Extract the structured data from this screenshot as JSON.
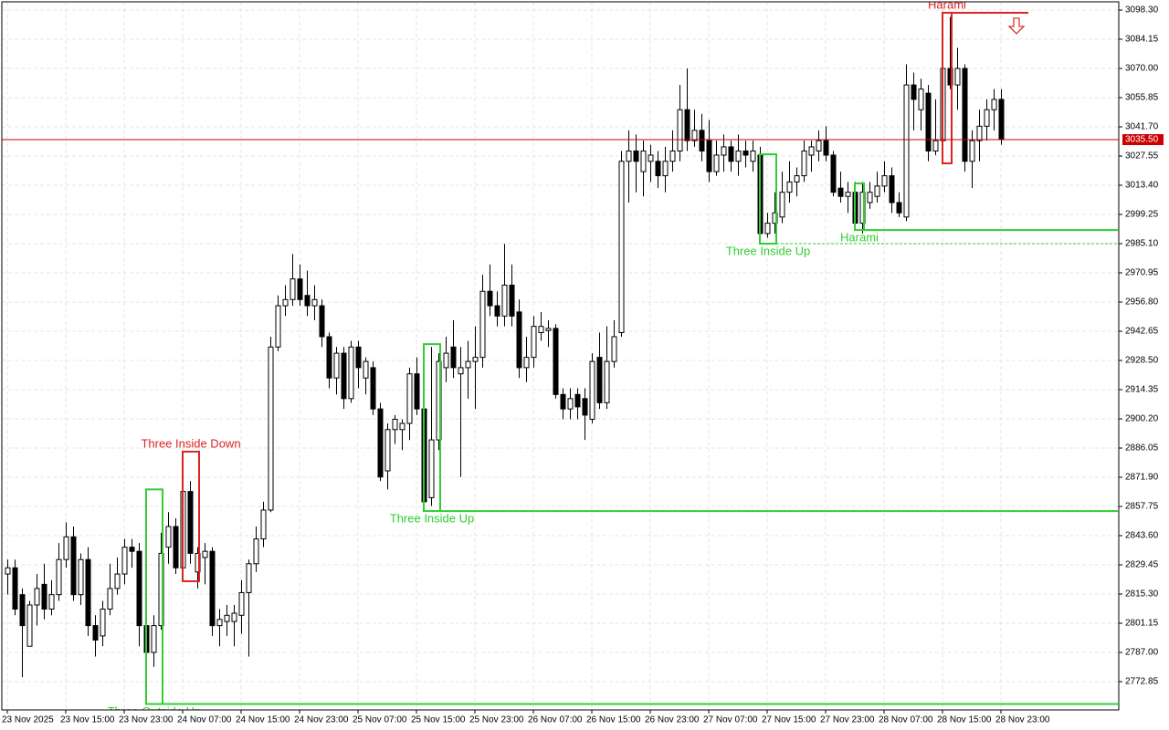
{
  "chart_data": {
    "type": "candlestick",
    "open": [
      2825,
      2828,
      2815,
      2790,
      2810,
      2820,
      2808,
      2815,
      2832,
      2843,
      2815,
      2832,
      2800,
      2795,
      2808,
      2818,
      2825,
      2838,
      2836,
      2800,
      2787,
      2800,
      2838,
      2848,
      2828,
      2865,
      2826,
      2833,
      2836,
      2800,
      2802,
      2802,
      2805,
      2816,
      2830,
      2842,
      2856,
      2935,
      2955,
      2958,
      2968,
      2960,
      2955,
      2955,
      2940,
      2920,
      2932,
      2910,
      2935,
      2920,
      2925,
      2905,
      2875,
      2895,
      2895,
      2898,
      2922,
      2905,
      2862,
      2890,
      2925,
      2935,
      2922,
      2925,
      2928,
      2930,
      2962,
      2955,
      2950,
      2965,
      2952,
      2925,
      2930,
      2942,
      2943,
      2944,
      2912,
      2905,
      2912,
      2910,
      2900,
      2930,
      2908,
      2928,
      2942,
      3025,
      3030,
      3020,
      3025,
      3025,
      3018,
      3025,
      3030,
      3050,
      3035,
      3040,
      3035,
      3020,
      3028,
      3032,
      3025,
      3030,
      3025,
      3028,
      2990,
      2995,
      2998,
      3010,
      3015,
      3018,
      3028,
      3030,
      3035,
      3028,
      3012,
      3008,
      3010,
      2995,
      3005,
      3008,
      3013,
      3018,
      3005,
      2998,
      3062,
      3050,
      3058,
      3030,
      3035,
      3070,
      3062,
      3070,
      3025,
      3035,
      3042,
      3050,
      3055
    ],
    "high": [
      2832,
      2832,
      2818,
      2812,
      2825,
      2830,
      2822,
      2840,
      2850,
      2848,
      2835,
      2838,
      2805,
      2812,
      2830,
      2833,
      2842,
      2842,
      2840,
      2805,
      2805,
      2845,
      2855,
      2852,
      2870,
      2870,
      2838,
      2840,
      2838,
      2808,
      2810,
      2810,
      2822,
      2832,
      2848,
      2860,
      2940,
      2960,
      2965,
      2980,
      2975,
      2972,
      2965,
      2958,
      2942,
      2935,
      2935,
      2938,
      2938,
      2930,
      2928,
      2908,
      2898,
      2902,
      2900,
      2925,
      2930,
      2908,
      2935,
      2932,
      2940,
      2948,
      2935,
      2938,
      2945,
      2970,
      2975,
      2962,
      2985,
      2975,
      2958,
      2940,
      2950,
      2952,
      2948,
      2946,
      2915,
      2915,
      2915,
      2915,
      2932,
      2942,
      2945,
      2948,
      3030,
      3040,
      3038,
      3035,
      3033,
      3030,
      3032,
      3040,
      3062,
      3070,
      3050,
      3048,
      3045,
      3035,
      3038,
      3035,
      3038,
      3035,
      3035,
      3032,
      3000,
      3010,
      3020,
      3025,
      3022,
      3035,
      3035,
      3040,
      3042,
      3030,
      3020,
      3015,
      3015,
      3015,
      3015,
      3020,
      3025,
      3022,
      3010,
      3072,
      3068,
      3065,
      3062,
      3055,
      3092,
      3095,
      3080,
      3072,
      3040,
      3050,
      3055,
      3060,
      3060
    ],
    "low": [
      2815,
      2805,
      2775,
      2790,
      2800,
      2803,
      2805,
      2812,
      2828,
      2812,
      2810,
      2795,
      2785,
      2790,
      2805,
      2815,
      2820,
      2828,
      2790,
      2772,
      2780,
      2798,
      2830,
      2825,
      2825,
      2830,
      2818,
      2820,
      2795,
      2790,
      2795,
      2790,
      2796,
      2785,
      2826,
      2838,
      2855,
      2933,
      2950,
      2955,
      2955,
      2950,
      2948,
      2935,
      2915,
      2912,
      2905,
      2908,
      2915,
      2912,
      2902,
      2870,
      2866,
      2888,
      2885,
      2890,
      2902,
      2858,
      2858,
      2885,
      2918,
      2920,
      2872,
      2910,
      2905,
      2925,
      2950,
      2945,
      2945,
      2945,
      2920,
      2918,
      2925,
      2938,
      2935,
      2910,
      2900,
      2900,
      2900,
      2890,
      2898,
      2905,
      2905,
      2925,
      2940,
      3005,
      3010,
      3008,
      3015,
      3012,
      3010,
      3020,
      3025,
      3030,
      3032,
      3025,
      3015,
      3018,
      3020,
      3020,
      3018,
      3022,
      3020,
      2988,
      2988,
      2990,
      2995,
      3005,
      3008,
      3015,
      3020,
      3025,
      3025,
      3008,
      3005,
      3000,
      2992,
      2990,
      3002,
      3005,
      3010,
      3000,
      2998,
      2996,
      3040,
      3040,
      3025,
      3028,
      3025,
      3060,
      3050,
      3020,
      3012,
      3025,
      3035,
      3040,
      3033
    ],
    "close": [
      2828,
      2808,
      2800,
      2810,
      2818,
      2808,
      2815,
      2832,
      2843,
      2815,
      2832,
      2800,
      2793,
      2808,
      2818,
      2825,
      2838,
      2836,
      2800,
      2787,
      2800,
      2835,
      2848,
      2828,
      2865,
      2835,
      2835,
      2836,
      2800,
      2803,
      2805,
      2806,
      2816,
      2830,
      2842,
      2856,
      2935,
      2955,
      2958,
      2968,
      2958,
      2955,
      2958,
      2940,
      2920,
      2932,
      2910,
      2935,
      2925,
      2928,
      2905,
      2872,
      2895,
      2900,
      2898,
      2922,
      2905,
      2860,
      2890,
      2928,
      2932,
      2925,
      2925,
      2928,
      2930,
      2962,
      2955,
      2950,
      2965,
      2950,
      2925,
      2930,
      2945,
      2945,
      2944,
      2912,
      2905,
      2910,
      2906,
      2902,
      2928,
      2908,
      2928,
      2940,
      3025,
      3030,
      3025,
      3030,
      3028,
      3018,
      3025,
      3030,
      3050,
      3035,
      3040,
      3030,
      3020,
      3028,
      3032,
      3025,
      3030,
      3028,
      3030,
      2990,
      2995,
      3000,
      3010,
      3015,
      3018,
      3030,
      3032,
      3035,
      3028,
      3010,
      3008,
      3010,
      2995,
      3010,
      3010,
      3013,
      3018,
      3005,
      3000,
      3062,
      3055,
      3060,
      3030,
      3035,
      3070,
      3062,
      3070,
      3025,
      3035,
      3042,
      3050,
      3055,
      3035.5
    ],
    "bull_color": "#ffffff",
    "bear_color": "#000000",
    "xlim": [
      -0.75,
      152.125
    ],
    "ylim": [
      2759.14,
      3102.28
    ],
    "xticks": [
      {
        "value": 0,
        "label": "23 Nov 2025"
      },
      {
        "value": 8,
        "label": "23 Nov 15:00"
      },
      {
        "value": 16,
        "label": "23 Nov 23:00"
      },
      {
        "value": 24,
        "label": "24 Nov 07:00"
      },
      {
        "value": 32,
        "label": "24 Nov 15:00"
      },
      {
        "value": 40,
        "label": "24 Nov 23:00"
      },
      {
        "value": 48,
        "label": "25 Nov 07:00"
      },
      {
        "value": 56,
        "label": "25 Nov 15:00"
      },
      {
        "value": 64,
        "label": "25 Nov 23:00"
      },
      {
        "value": 72,
        "label": "26 Nov 07:00"
      },
      {
        "value": 80,
        "label": "26 Nov 15:00"
      },
      {
        "value": 88,
        "label": "26 Nov 23:00"
      },
      {
        "value": 96,
        "label": "27 Nov 07:00"
      },
      {
        "value": 104,
        "label": "27 Nov 15:00"
      },
      {
        "value": 112,
        "label": "27 Nov 23:00"
      },
      {
        "value": 120,
        "label": "28 Nov 07:00"
      },
      {
        "value": 128,
        "label": "28 Nov 15:00"
      },
      {
        "value": 136,
        "label": "28 Nov 23:00"
      }
    ],
    "yticks": [
      {
        "value": 3098.3,
        "label": "3098.30"
      },
      {
        "value": 3084.15,
        "label": "3084.15"
      },
      {
        "value": 3070,
        "label": "3070.00"
      },
      {
        "value": 3055.85,
        "label": "3055.85"
      },
      {
        "value": 3041.7,
        "label": "3041.70"
      },
      {
        "value": 3027.55,
        "label": "3027.55"
      },
      {
        "value": 3013.4,
        "label": "3013.40"
      },
      {
        "value": 2999.25,
        "label": "2999.25"
      },
      {
        "value": 2985.1,
        "label": "2985.10"
      },
      {
        "value": 2970.95,
        "label": "2970.95"
      },
      {
        "value": 2956.8,
        "label": "2956.80"
      },
      {
        "value": 2942.65,
        "label": "2942.65"
      },
      {
        "value": 2928.5,
        "label": "2928.50"
      },
      {
        "value": 2914.35,
        "label": "2914.35"
      },
      {
        "value": 2900.2,
        "label": "2900.20"
      },
      {
        "value": 2886.05,
        "label": "2886.05"
      },
      {
        "value": 2871.9,
        "label": "2871.90"
      },
      {
        "value": 2857.75,
        "label": "2857.75"
      },
      {
        "value": 2843.6,
        "label": "2843.60"
      },
      {
        "value": 2829.45,
        "label": "2829.45"
      },
      {
        "value": 2815.3,
        "label": "2815.30"
      },
      {
        "value": 2801.15,
        "label": "2801.15"
      },
      {
        "value": 2787,
        "label": "2787.00"
      },
      {
        "value": 2772.85,
        "label": "2772.85"
      }
    ],
    "grid": true,
    "last_price": {
      "value": 3035.5,
      "label": "3035.50",
      "color": "#cc0000"
    },
    "patterns": [
      {
        "label": "Three Outside Up",
        "color": "#32cd32",
        "from": 19,
        "to": 21,
        "high": 2866,
        "low": 2762,
        "level": 2762,
        "extend_to": 152,
        "label_position": "below",
        "line_style": "solid"
      },
      {
        "label": "Three Inside Down",
        "color": "#dd2222",
        "from": 24,
        "to": 26,
        "high": 2884.3,
        "low": 2821.5,
        "label_position": "above"
      },
      {
        "label": "Three Inside Up",
        "color": "#32cd32",
        "from": 57,
        "to": 59,
        "high": 2936.4,
        "low": 2855.5,
        "level": 2855.5,
        "extend_to": 152,
        "label_position": "below",
        "line_style": "solid"
      },
      {
        "label": "Three Inside Up",
        "color": "#32cd32",
        "from": 103,
        "to": 105,
        "high": 3028.4,
        "low": 2985.1,
        "level": 2985.1,
        "extend_to": 152,
        "label_position": "below",
        "line_style": "dashed"
      },
      {
        "label": "Harami",
        "color": "#32cd32",
        "from": 116,
        "to": 117,
        "high": 3014.3,
        "low": 2991.7,
        "level": 2991.7,
        "extend_to": 152,
        "label_position": "below",
        "line_style": "solid"
      },
      {
        "label": "Harami",
        "color": "#dd2222",
        "from": 128,
        "to": 129,
        "high": 3097,
        "low": 3024,
        "level": 3097,
        "extend_to": 139.75,
        "label_position": "above",
        "line_style": "solid",
        "arrow": "down"
      }
    ]
  }
}
